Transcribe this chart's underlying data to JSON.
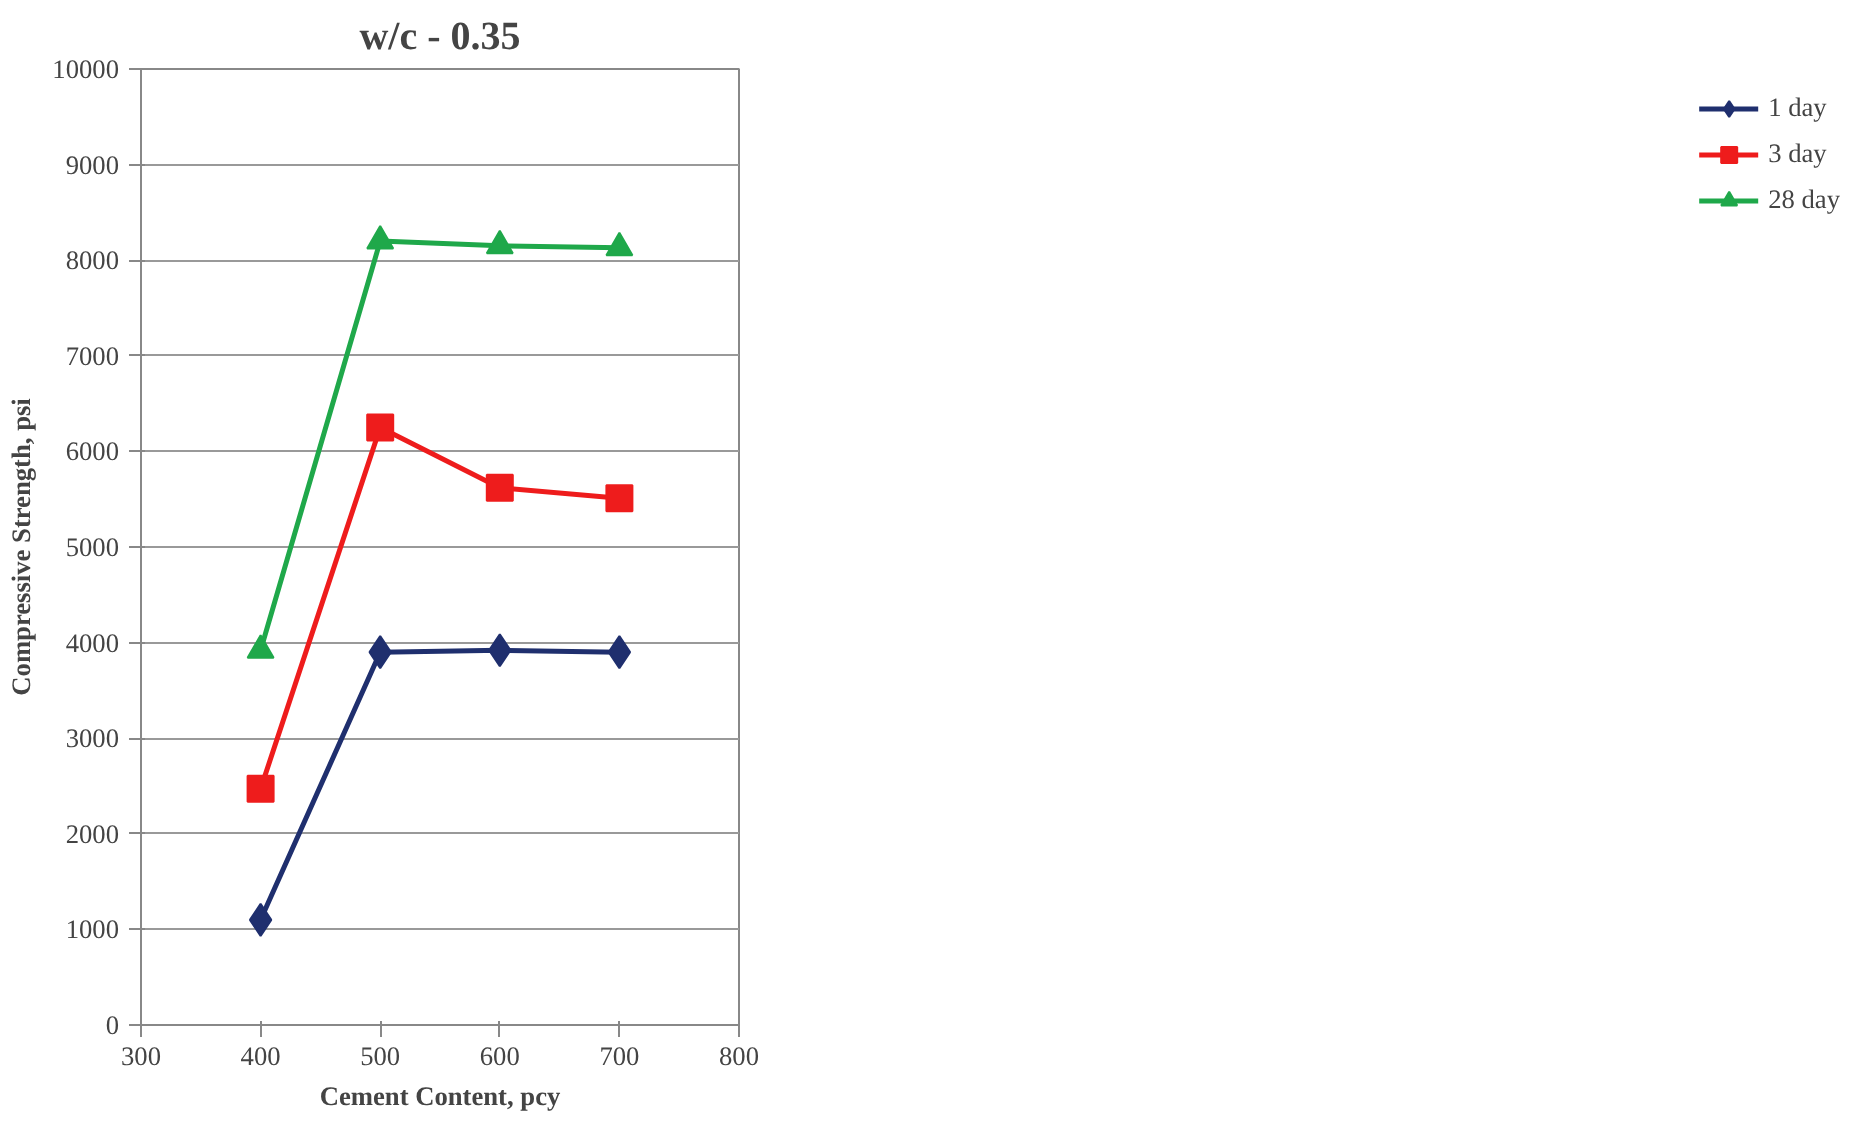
{
  "chart_data": {
    "type": "line",
    "title": "w/c - 0.35",
    "xlabel": "Cement Content, pcy",
    "ylabel": "Compressive Strength, psi",
    "x": [
      400,
      500,
      600,
      700
    ],
    "series": [
      {
        "name": "1 day",
        "color": "#1f2f6e",
        "marker": "diamond",
        "values": [
          1100,
          3900,
          3920,
          3900
        ]
      },
      {
        "name": "3 day",
        "color": "#ee1c1c",
        "marker": "square",
        "values": [
          2470,
          6250,
          5620,
          5510
        ]
      },
      {
        "name": "28 day",
        "color": "#1fa84a",
        "marker": "triangle",
        "values": [
          3920,
          8200,
          8150,
          8130
        ]
      }
    ],
    "xlim": [
      300,
      800
    ],
    "xticks": [
      300,
      400,
      500,
      600,
      700,
      800
    ],
    "ylim": [
      0,
      10000
    ],
    "yticks": [
      0,
      1000,
      2000,
      3000,
      4000,
      5000,
      6000,
      7000,
      8000,
      9000,
      10000
    ],
    "grid": "y",
    "legend": "right",
    "line_style": "solid"
  }
}
